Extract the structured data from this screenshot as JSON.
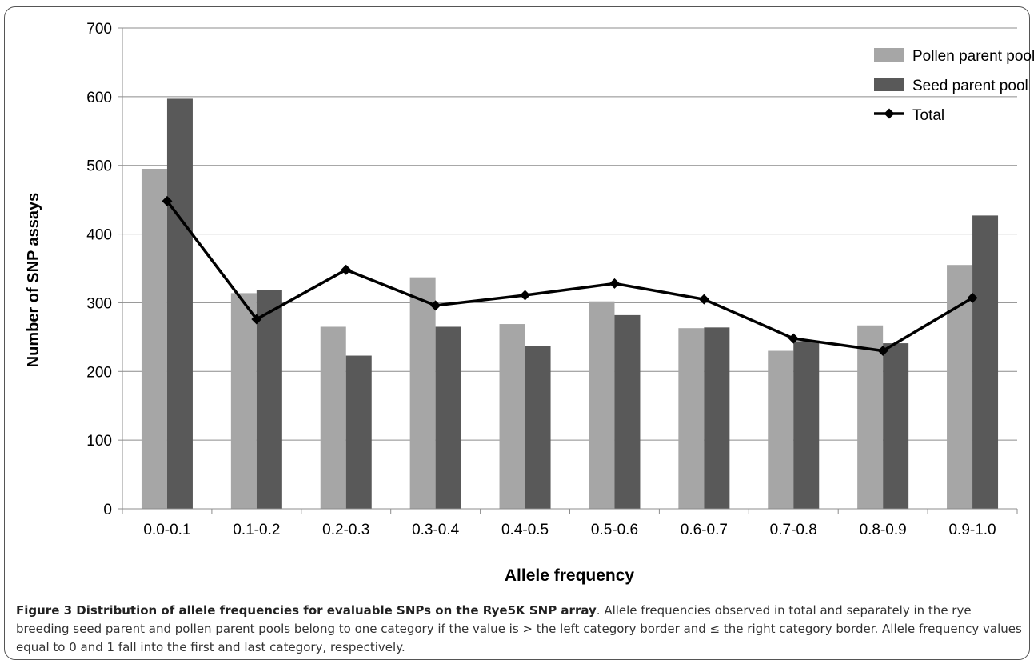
{
  "chart_data": {
    "type": "bar",
    "xlabel": "Allele frequency",
    "ylabel": "Number of SNP assays",
    "ylim": [
      0,
      700
    ],
    "yticks": [
      0,
      100,
      200,
      300,
      400,
      500,
      600,
      700
    ],
    "grid": true,
    "legend_position": "top-right",
    "categories": [
      "0.0-0.1",
      "0.1-0.2",
      "0.2-0.3",
      "0.3-0.4",
      "0.4-0.5",
      "0.5-0.6",
      "0.6-0.7",
      "0.7-0.8",
      "0.8-0.9",
      "0.9-1.0"
    ],
    "series": [
      {
        "name": "Pollen parent pool",
        "kind": "bar",
        "color": "#a6a6a6",
        "values": [
          495,
          314,
          265,
          337,
          269,
          302,
          263,
          230,
          267,
          355
        ]
      },
      {
        "name": "Seed parent pool",
        "kind": "bar",
        "color": "#595959",
        "values": [
          597,
          318,
          223,
          265,
          237,
          282,
          264,
          244,
          241,
          427
        ]
      },
      {
        "name": "Total",
        "kind": "line",
        "color": "#000000",
        "values": [
          448,
          276,
          348,
          296,
          311,
          328,
          305,
          248,
          230,
          307
        ]
      }
    ]
  },
  "caption": {
    "bold": "Figure 3 Distribution of allele frequencies for evaluable SNPs on the Rye5K SNP array",
    "text": ". Allele frequencies observed in total and separately in the rye breeding seed parent and pollen parent pools belong to one category if the value is > the left category border and ≤ the right category border. Allele frequency values equal to 0 and 1 fall into the first and last category, respectively."
  }
}
